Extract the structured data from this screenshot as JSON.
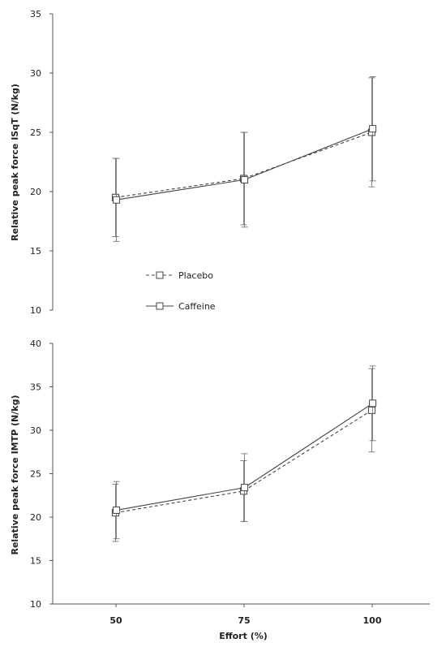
{
  "chart_data": [
    {
      "type": "line",
      "title": "",
      "xlabel": "",
      "ylabel": "Relative peak force ISqT (N/kg)",
      "x": [
        50,
        75,
        100
      ],
      "ylim": [
        10,
        35
      ],
      "yticks": [
        10,
        15,
        20,
        25,
        30,
        35
      ],
      "grid": false,
      "legend": "center-left",
      "series": [
        {
          "name": "Placebo",
          "style": "dashed",
          "marker": "square",
          "values": [
            19.5,
            21.1,
            25.0
          ],
          "error": [
            3.3,
            3.9,
            4.6
          ]
        },
        {
          "name": "Caffeine",
          "style": "solid",
          "marker": "square",
          "values": [
            19.3,
            21.0,
            25.3
          ],
          "error": [
            3.5,
            4.0,
            4.4
          ]
        }
      ]
    },
    {
      "type": "line",
      "title": "",
      "xlabel": "Effort (%)",
      "ylabel": "Relative peak force IMTP (N/kg)",
      "x": [
        50,
        75,
        100
      ],
      "xtick_labels": [
        "50",
        "75",
        "100"
      ],
      "ylim": [
        10,
        40
      ],
      "yticks": [
        10,
        15,
        20,
        25,
        30,
        35,
        40
      ],
      "grid": false,
      "series": [
        {
          "name": "Placebo",
          "style": "dashed",
          "marker": "square",
          "values": [
            20.5,
            23.0,
            32.3
          ],
          "error": [
            3.3,
            3.5,
            4.8
          ]
        },
        {
          "name": "Caffeine",
          "style": "solid",
          "marker": "square",
          "values": [
            20.8,
            23.4,
            33.1
          ],
          "error": [
            3.3,
            3.9,
            4.3
          ]
        }
      ]
    }
  ],
  "colors": {
    "line": "#444444",
    "axis": "#555555"
  }
}
